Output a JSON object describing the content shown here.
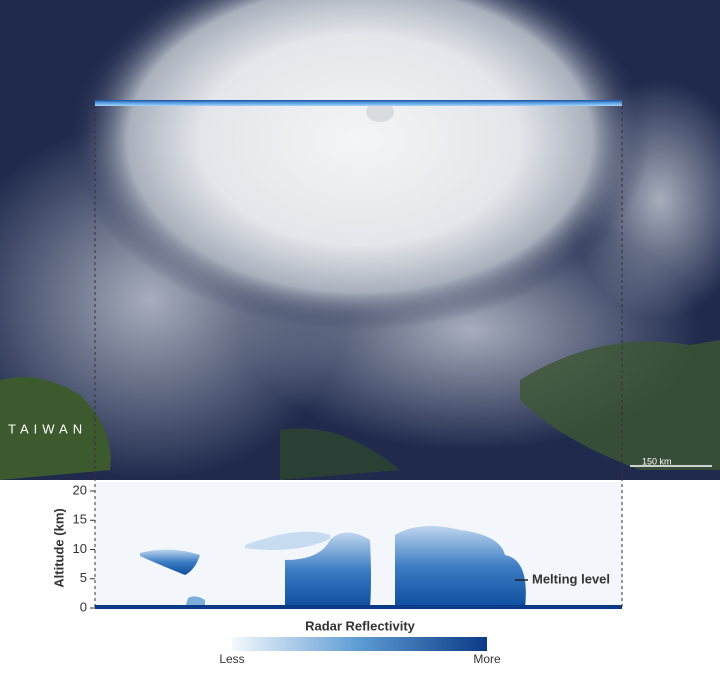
{
  "map": {
    "region_label": "TAIWAN",
    "scale_label": "150 km"
  },
  "chart_data": {
    "type": "profile",
    "ylabel": "Altitude (km)",
    "ylim": [
      0,
      20
    ],
    "yticks": [
      0,
      5,
      10,
      15,
      20
    ],
    "annotation": "Melting level",
    "colorbar": {
      "title": "Radar Reflectivity",
      "low_label": "Less",
      "high_label": "More"
    }
  }
}
